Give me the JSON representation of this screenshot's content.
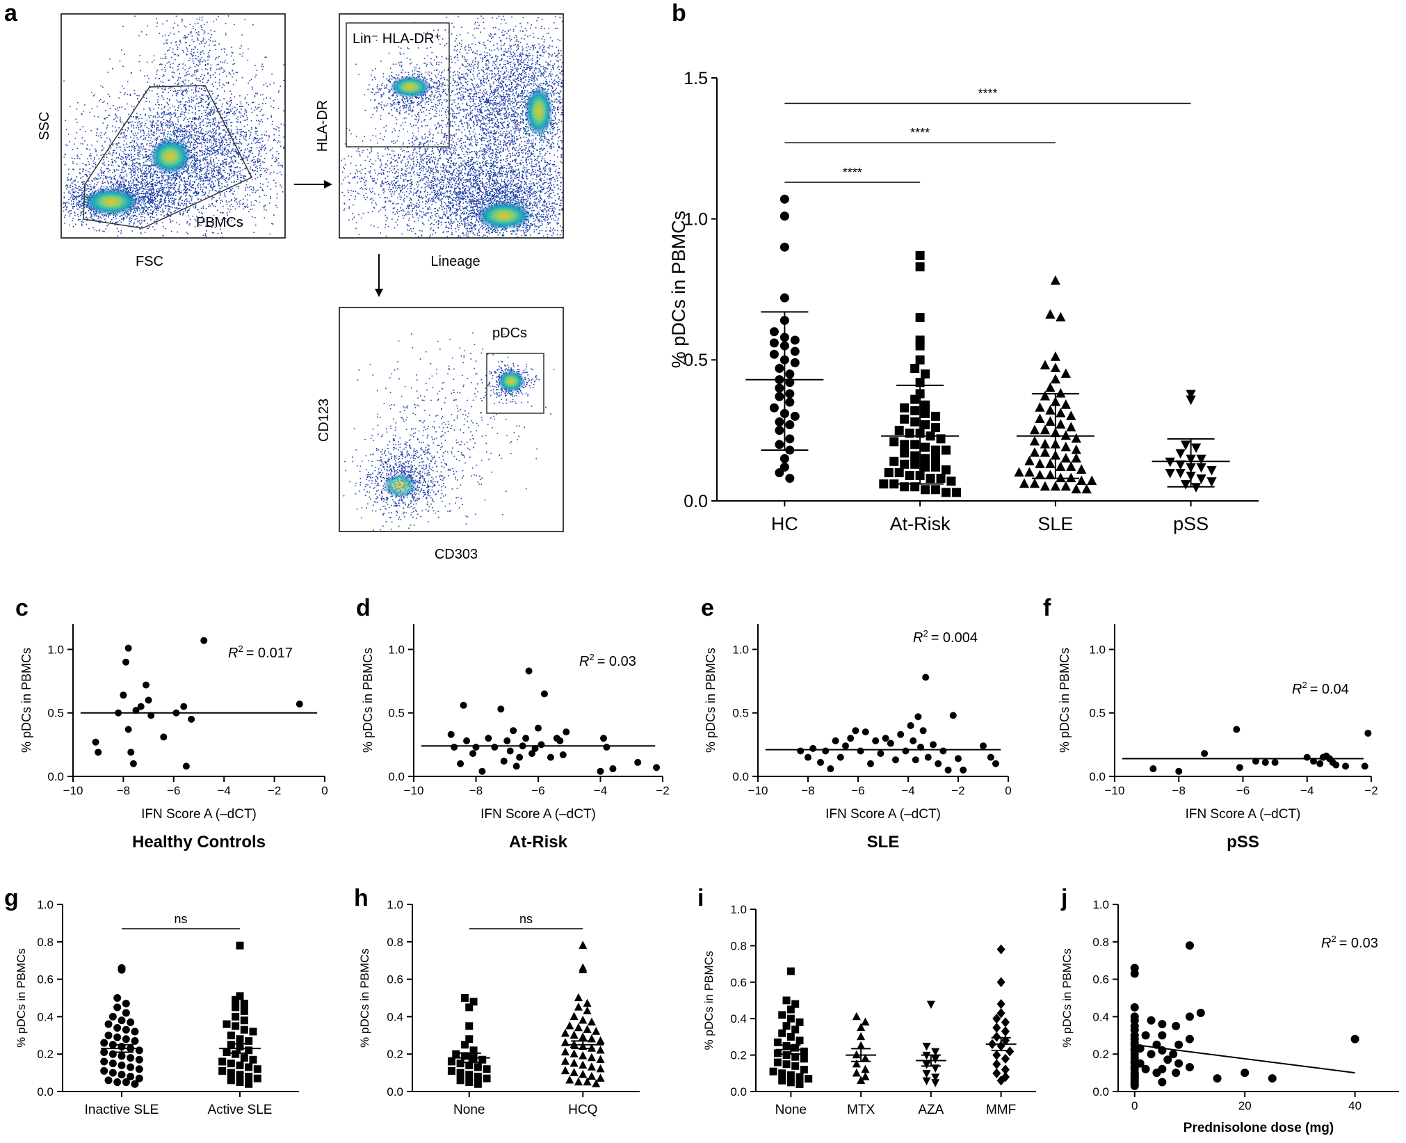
{
  "panel_labels": {
    "a": "a",
    "b": "b",
    "c": "c",
    "d": "d",
    "e": "e",
    "f": "f",
    "g": "g",
    "h": "h",
    "i": "i",
    "j": "j"
  },
  "flow": {
    "plot1": {
      "xlabel": "FSC",
      "ylabel": "SSC",
      "gate_label": "PBMCs"
    },
    "plot2": {
      "xlabel": "Lineage",
      "ylabel": "HLA-DR",
      "gate_label": "Lin⁻ HLA-DR⁺"
    },
    "plot3": {
      "xlabel": "CD303",
      "ylabel": "CD123",
      "gate_label": "pDCs"
    }
  },
  "colors": {
    "dot": "#000000",
    "flow_low": "#1f3fa8",
    "flow_mid": "#17a8c0",
    "flow_high": "#f0c020"
  },
  "chart_data": [
    {
      "id": "b",
      "type": "scatter",
      "categories": [
        "HC",
        "At-Risk",
        "SLE",
        "pSS"
      ],
      "ylabel": "% pDCs in PBMCs",
      "ylim": [
        0,
        1.5
      ],
      "yticks": [
        "0.0",
        "0.5",
        "1.0",
        "1.5"
      ],
      "markers": [
        "circle",
        "square",
        "triangle-up",
        "triangle-down"
      ],
      "means": [
        0.43,
        0.23,
        0.23,
        0.14
      ],
      "sd": [
        [
          0.18,
          0.67
        ],
        [
          0.06,
          0.41
        ],
        [
          0.08,
          0.38
        ],
        [
          0.05,
          0.22
        ]
      ],
      "series": [
        {
          "name": "HC",
          "values": [
            1.07,
            1.01,
            0.9,
            0.72,
            0.64,
            0.6,
            0.58,
            0.57,
            0.56,
            0.55,
            0.53,
            0.52,
            0.5,
            0.49,
            0.47,
            0.45,
            0.43,
            0.42,
            0.4,
            0.38,
            0.37,
            0.35,
            0.33,
            0.31,
            0.3,
            0.28,
            0.27,
            0.25,
            0.22,
            0.2,
            0.18,
            0.15,
            0.12,
            0.1,
            0.08
          ]
        },
        {
          "name": "At-Risk",
          "values": [
            0.87,
            0.83,
            0.65,
            0.57,
            0.55,
            0.5,
            0.47,
            0.45,
            0.42,
            0.38,
            0.36,
            0.34,
            0.33,
            0.32,
            0.31,
            0.3,
            0.29,
            0.28,
            0.27,
            0.26,
            0.25,
            0.24,
            0.24,
            0.23,
            0.22,
            0.21,
            0.2,
            0.2,
            0.19,
            0.18,
            0.18,
            0.17,
            0.16,
            0.15,
            0.15,
            0.14,
            0.13,
            0.13,
            0.12,
            0.12,
            0.11,
            0.1,
            0.1,
            0.09,
            0.09,
            0.08,
            0.08,
            0.07,
            0.06,
            0.06,
            0.05,
            0.05,
            0.04,
            0.04,
            0.03,
            0.03
          ]
        },
        {
          "name": "SLE",
          "values": [
            0.78,
            0.66,
            0.65,
            0.51,
            0.48,
            0.47,
            0.45,
            0.43,
            0.4,
            0.38,
            0.37,
            0.35,
            0.34,
            0.33,
            0.32,
            0.31,
            0.3,
            0.29,
            0.28,
            0.27,
            0.26,
            0.25,
            0.25,
            0.24,
            0.23,
            0.22,
            0.21,
            0.2,
            0.2,
            0.19,
            0.18,
            0.17,
            0.17,
            0.16,
            0.15,
            0.15,
            0.14,
            0.13,
            0.13,
            0.12,
            0.12,
            0.11,
            0.1,
            0.1,
            0.09,
            0.09,
            0.08,
            0.08,
            0.07,
            0.07,
            0.06,
            0.06,
            0.05,
            0.05,
            0.05,
            0.04,
            0.04
          ]
        },
        {
          "name": "pSS",
          "values": [
            0.38,
            0.36,
            0.2,
            0.19,
            0.17,
            0.15,
            0.15,
            0.14,
            0.13,
            0.12,
            0.12,
            0.11,
            0.1,
            0.1,
            0.09,
            0.08,
            0.07,
            0.06,
            0.05
          ]
        }
      ],
      "comparisons": [
        {
          "from": "HC",
          "to": "At-Risk",
          "label": "****",
          "y": 1.13
        },
        {
          "from": "HC",
          "to": "SLE",
          "label": "****",
          "y": 1.27
        },
        {
          "from": "HC",
          "to": "pSS",
          "label": "****",
          "y": 1.41
        }
      ]
    },
    {
      "id": "c",
      "type": "scatter",
      "title": "Healthy Controls",
      "xlabel": "IFN Score A (–dCT)",
      "ylabel": "% pDCs in PBMCs",
      "xlim": [
        -10,
        0
      ],
      "ylim": [
        0,
        1.2
      ],
      "xticks": [
        "−10",
        "−8",
        "−6",
        "−4",
        "−2",
        "0"
      ],
      "yticks": [
        "0.0",
        "0.5",
        "1.0"
      ],
      "r2_label": "R",
      "r2_value": "= 0.017",
      "fit": [
        0.5,
        0.5
      ],
      "x": [
        -9.1,
        -9,
        -8.2,
        -8,
        -8,
        -7.9,
        -7.8,
        -7.8,
        -7.7,
        -7.6,
        -7.5,
        -7.3,
        -7.1,
        -7,
        -6.9,
        -6.4,
        -5.9,
        -5.6,
        -5.5,
        -5.3,
        -4.8,
        -1
      ],
      "y": [
        0.27,
        0.19,
        0.5,
        0.64,
        0.64,
        0.9,
        1.01,
        0.37,
        0.19,
        0.1,
        0.52,
        0.55,
        0.72,
        0.6,
        0.48,
        0.31,
        0.5,
        0.55,
        0.08,
        0.45,
        1.07,
        0.57
      ]
    },
    {
      "id": "d",
      "type": "scatter",
      "title": "At-Risk",
      "xlabel": "IFN Score A (–dCT)",
      "ylabel": "% pDCs in PBMCs",
      "xlim": [
        -10,
        -2
      ],
      "ylim": [
        0,
        1.2
      ],
      "xticks": [
        "−10",
        "−8",
        "−6",
        "−4",
        "−2"
      ],
      "yticks": [
        "0.0",
        "0.5",
        "1.0"
      ],
      "r2_label": "R",
      "r2_value": "= 0.03",
      "fit": [
        0.24,
        0.24
      ],
      "x": [
        -8.8,
        -8.7,
        -8.5,
        -8.4,
        -8.3,
        -8.1,
        -8,
        -7.8,
        -7.6,
        -7.4,
        -7.2,
        -7.1,
        -7,
        -6.9,
        -6.8,
        -6.7,
        -6.6,
        -6.5,
        -6.4,
        -6.3,
        -6.2,
        -6.1,
        -6,
        -5.9,
        -5.8,
        -5.6,
        -5.4,
        -5.3,
        -5.2,
        -5.1,
        -4,
        -3.9,
        -3.8,
        -3.6,
        -2.8,
        -2.2
      ],
      "y": [
        0.33,
        0.23,
        0.1,
        0.56,
        0.28,
        0.18,
        0.23,
        0.04,
        0.3,
        0.23,
        0.53,
        0.12,
        0.28,
        0.2,
        0.36,
        0.08,
        0.15,
        0.24,
        0.3,
        0.83,
        0.18,
        0.22,
        0.38,
        0.25,
        0.65,
        0.15,
        0.3,
        0.28,
        0.17,
        0.35,
        0.04,
        0.3,
        0.23,
        0.06,
        0.11,
        0.07
      ]
    },
    {
      "id": "e",
      "type": "scatter",
      "title": "SLE",
      "xlabel": "IFN Score A (–dCT)",
      "ylabel": "% pDCs in PBMCs",
      "xlim": [
        -10,
        0
      ],
      "ylim": [
        0,
        1.2
      ],
      "xticks": [
        "−10",
        "−8",
        "−6",
        "−4",
        "−2",
        "0"
      ],
      "yticks": [
        "0.0",
        "0.5",
        "1.0"
      ],
      "r2_label": "R",
      "r2_value": "= 0.004",
      "fit": [
        0.21,
        0.21
      ],
      "x": [
        -8.3,
        -8,
        -7.8,
        -7.5,
        -7.3,
        -7.1,
        -6.9,
        -6.7,
        -6.5,
        -6.3,
        -6.1,
        -5.9,
        -5.7,
        -5.5,
        -5.3,
        -5.1,
        -4.9,
        -4.7,
        -4.5,
        -4.3,
        -4.1,
        -3.9,
        -3.8,
        -3.7,
        -3.6,
        -3.5,
        -3.4,
        -3.3,
        -3.2,
        -3,
        -2.8,
        -2.6,
        -2.4,
        -2.2,
        -2,
        -1.8,
        -1,
        -0.7,
        -0.5
      ],
      "y": [
        0.2,
        0.15,
        0.22,
        0.11,
        0.2,
        0.06,
        0.28,
        0.15,
        0.24,
        0.3,
        0.36,
        0.2,
        0.35,
        0.1,
        0.28,
        0.18,
        0.3,
        0.26,
        0.13,
        0.33,
        0.2,
        0.4,
        0.28,
        0.13,
        0.47,
        0.23,
        0.36,
        0.78,
        0.15,
        0.25,
        0.1,
        0.2,
        0.05,
        0.48,
        0.14,
        0.05,
        0.24,
        0.15,
        0.1
      ]
    },
    {
      "id": "f",
      "type": "scatter",
      "title": "pSS",
      "xlabel": "IFN Score A (–dCT)",
      "ylabel": "% pDCs in PBMCs",
      "xlim": [
        -10,
        -2
      ],
      "ylim": [
        0,
        1.2
      ],
      "xticks": [
        "−10",
        "−8",
        "−6",
        "−4",
        "−2"
      ],
      "yticks": [
        "0.0",
        "0.5",
        "1.0"
      ],
      "r2_label": "R",
      "r2_value": "= 0.04",
      "fit": [
        0.14,
        0.14
      ],
      "x": [
        -8.8,
        -8,
        -7.2,
        -6.2,
        -6.1,
        -5.6,
        -5.3,
        -5,
        -4,
        -3.8,
        -3.6,
        -3.5,
        -3.4,
        -3.3,
        -3.2,
        -3.1,
        -2.8,
        -2.2,
        -2.1
      ],
      "y": [
        0.06,
        0.04,
        0.18,
        0.37,
        0.07,
        0.12,
        0.11,
        0.11,
        0.15,
        0.12,
        0.1,
        0.15,
        0.16,
        0.14,
        0.11,
        0.09,
        0.08,
        0.08,
        0.34
      ]
    },
    {
      "id": "g",
      "type": "scatter",
      "categories": [
        "Inactive SLE",
        "Active SLE"
      ],
      "ylabel": "% pDCs in PBMCs",
      "ylim": [
        0,
        1.0
      ],
      "yticks": [
        "0.0",
        "0.2",
        "0.4",
        "0.6",
        "0.8",
        "1.0"
      ],
      "markers": [
        "circle",
        "square"
      ],
      "means": [
        0.23,
        0.23
      ],
      "sem": [
        0.02,
        0.025
      ],
      "series": [
        {
          "name": "Inactive SLE",
          "values": [
            0.66,
            0.65,
            0.5,
            0.47,
            0.45,
            0.42,
            0.4,
            0.38,
            0.37,
            0.36,
            0.34,
            0.33,
            0.32,
            0.3,
            0.29,
            0.28,
            0.27,
            0.26,
            0.25,
            0.24,
            0.23,
            0.22,
            0.21,
            0.2,
            0.19,
            0.18,
            0.17,
            0.16,
            0.15,
            0.14,
            0.13,
            0.12,
            0.11,
            0.1,
            0.09,
            0.08,
            0.07,
            0.06,
            0.05,
            0.05,
            0.04
          ]
        },
        {
          "name": "Active SLE",
          "values": [
            0.78,
            0.51,
            0.49,
            0.47,
            0.45,
            0.43,
            0.4,
            0.38,
            0.36,
            0.35,
            0.33,
            0.32,
            0.3,
            0.28,
            0.27,
            0.25,
            0.24,
            0.22,
            0.21,
            0.2,
            0.18,
            0.17,
            0.16,
            0.15,
            0.14,
            0.13,
            0.12,
            0.11,
            0.1,
            0.09,
            0.08,
            0.07,
            0.06,
            0.05,
            0.04
          ]
        }
      ],
      "comparisons": [
        {
          "from": "Inactive SLE",
          "to": "Active SLE",
          "label": "ns",
          "y": 0.87
        }
      ]
    },
    {
      "id": "h",
      "type": "scatter",
      "categories": [
        "None",
        "HCQ"
      ],
      "ylabel": "% pDCs in PBMCs",
      "ylim": [
        0,
        1.0
      ],
      "yticks": [
        "0.0",
        "0.2",
        "0.4",
        "0.6",
        "0.8",
        "1.0"
      ],
      "markers": [
        "square",
        "triangle-up"
      ],
      "means": [
        0.18,
        0.25
      ],
      "sem": [
        0.025,
        0.02
      ],
      "series": [
        {
          "name": "None",
          "values": [
            0.5,
            0.48,
            0.45,
            0.35,
            0.28,
            0.25,
            0.22,
            0.2,
            0.19,
            0.18,
            0.17,
            0.16,
            0.15,
            0.14,
            0.13,
            0.12,
            0.11,
            0.1,
            0.09,
            0.08,
            0.07,
            0.06,
            0.05,
            0.04
          ]
        },
        {
          "name": "HCQ",
          "values": [
            0.78,
            0.66,
            0.65,
            0.5,
            0.47,
            0.45,
            0.43,
            0.4,
            0.38,
            0.37,
            0.35,
            0.34,
            0.33,
            0.32,
            0.31,
            0.3,
            0.29,
            0.28,
            0.27,
            0.26,
            0.25,
            0.24,
            0.23,
            0.22,
            0.21,
            0.2,
            0.19,
            0.18,
            0.17,
            0.16,
            0.15,
            0.14,
            0.13,
            0.12,
            0.11,
            0.1,
            0.09,
            0.08,
            0.07,
            0.06,
            0.05,
            0.05,
            0.04
          ]
        }
      ],
      "comparisons": [
        {
          "from": "None",
          "to": "HCQ",
          "label": "ns",
          "y": 0.87
        }
      ]
    },
    {
      "id": "i",
      "type": "scatter",
      "categories": [
        "None",
        "MTX",
        "AZA",
        "MMF"
      ],
      "ylabel": "% pDCs in PBMCs",
      "ylim": [
        0,
        1.0
      ],
      "yticks": [
        "0.0",
        "0.2",
        "0.4",
        "0.6",
        "0.8",
        "1.0"
      ],
      "markers": [
        "square",
        "triangle-up",
        "triangle-down",
        "diamond"
      ],
      "means": [
        0.23,
        0.2,
        0.17,
        0.26
      ],
      "sem": [
        0.025,
        0.035,
        0.03,
        0.035
      ],
      "series": [
        {
          "name": "None",
          "values": [
            0.66,
            0.5,
            0.48,
            0.45,
            0.42,
            0.4,
            0.38,
            0.36,
            0.34,
            0.32,
            0.3,
            0.28,
            0.27,
            0.25,
            0.24,
            0.22,
            0.21,
            0.2,
            0.19,
            0.18,
            0.16,
            0.15,
            0.14,
            0.12,
            0.11,
            0.1,
            0.09,
            0.08,
            0.07,
            0.06,
            0.05,
            0.04
          ]
        },
        {
          "name": "MTX",
          "values": [
            0.41,
            0.38,
            0.35,
            0.3,
            0.25,
            0.2,
            0.18,
            0.15,
            0.12,
            0.1,
            0.08,
            0.06
          ]
        },
        {
          "name": "AZA",
          "values": [
            0.48,
            0.25,
            0.22,
            0.2,
            0.18,
            0.15,
            0.13,
            0.1,
            0.08,
            0.06,
            0.05
          ]
        },
        {
          "name": "MMF",
          "values": [
            0.78,
            0.6,
            0.48,
            0.43,
            0.4,
            0.38,
            0.35,
            0.33,
            0.3,
            0.28,
            0.26,
            0.25,
            0.22,
            0.2,
            0.18,
            0.15,
            0.12,
            0.1,
            0.08,
            0.06
          ]
        }
      ]
    },
    {
      "id": "j",
      "type": "scatter",
      "xlabel": "Prednisolone dose (mg)",
      "ylabel": "% pDCs in PBMCs",
      "xlim": [
        -3,
        48
      ],
      "ylim": [
        0,
        1.0
      ],
      "xticks": [
        "0",
        "20",
        "40"
      ],
      "yticks": [
        "0.0",
        "0.2",
        "0.4",
        "0.6",
        "0.8",
        "1.0"
      ],
      "r2_label": "R",
      "r2_value": "= 0.03",
      "fit_x": [
        0,
        40
      ],
      "fit": [
        0.25,
        0.1
      ],
      "x": [
        0,
        0,
        0,
        0,
        0,
        0,
        0,
        0,
        0,
        0,
        0,
        0,
        0,
        0,
        0,
        0,
        0,
        0,
        0,
        0,
        0,
        0,
        0,
        0,
        0,
        0,
        0,
        1,
        1,
        2,
        2,
        3,
        3,
        4,
        4,
        5,
        5,
        5,
        5,
        5,
        6,
        7,
        7.5,
        7.5,
        8,
        8,
        10,
        10,
        10,
        10,
        12,
        15,
        20,
        25,
        40
      ],
      "y": [
        0.66,
        0.63,
        0.45,
        0.4,
        0.38,
        0.35,
        0.33,
        0.3,
        0.28,
        0.26,
        0.25,
        0.23,
        0.22,
        0.2,
        0.18,
        0.16,
        0.15,
        0.13,
        0.12,
        0.1,
        0.09,
        0.08,
        0.07,
        0.06,
        0.05,
        0.04,
        0.03,
        0.23,
        0.15,
        0.3,
        0.12,
        0.38,
        0.2,
        0.1,
        0.25,
        0.36,
        0.3,
        0.22,
        0.12,
        0.05,
        0.17,
        0.2,
        0.35,
        0.1,
        0.25,
        0.15,
        0.78,
        0.4,
        0.28,
        0.13,
        0.42,
        0.07,
        0.1,
        0.07,
        0.28
      ]
    }
  ]
}
